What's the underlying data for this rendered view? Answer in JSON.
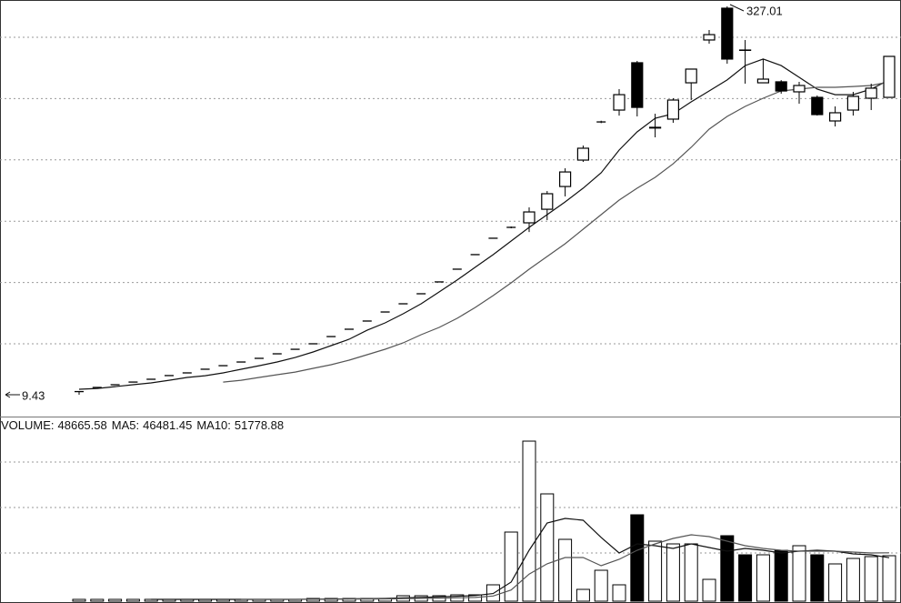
{
  "chart_data": [
    {
      "type": "candlestick",
      "color": "#000000",
      "grid": true,
      "ylim": [
        -8.4,
        332.2
      ],
      "open": [
        12.0,
        15.4,
        17.6,
        19.8,
        22.1,
        25.1,
        27.3,
        30.3,
        33.2,
        36.2,
        39.2,
        42.9,
        46.6,
        51.1,
        57.0,
        63.0,
        69.7,
        77.1,
        83.8,
        92.0,
        101.7,
        112.1,
        124.0,
        137.4,
        146.3,
        150.0,
        161.1,
        179.7,
        201.3,
        232.5,
        242.2,
        280.9,
        227.5,
        234.8,
        264.5,
        299.5,
        325.5,
        291.3,
        264.5,
        265.3,
        257.1,
        252.6,
        233.3,
        242.2,
        251.9,
        252.6
      ],
      "high": [
        12.0,
        15.4,
        17.6,
        19.8,
        22.1,
        25.1,
        27.3,
        30.3,
        33.2,
        36.2,
        39.2,
        42.9,
        46.6,
        51.1,
        57.0,
        63.0,
        69.7,
        77.1,
        83.8,
        92.0,
        101.7,
        112.1,
        124.0,
        137.4,
        147.0,
        162.6,
        176.0,
        194.6,
        213.2,
        233.5,
        259.3,
        282.4,
        239.2,
        251.9,
        275.7,
        307.7,
        327.01,
        299.5,
        283.9,
        266.7,
        265.3,
        254.1,
        245.2,
        257.1,
        263.8,
        286.1
      ],
      "low": [
        9.43,
        15.4,
        17.6,
        19.8,
        22.1,
        25.1,
        27.3,
        30.3,
        33.2,
        36.2,
        39.2,
        42.9,
        46.6,
        51.1,
        57.0,
        63.0,
        69.7,
        77.1,
        83.8,
        92.0,
        101.7,
        112.1,
        124.0,
        137.4,
        145.5,
        142.5,
        152.2,
        171.6,
        199.8,
        231.5,
        237.7,
        237.0,
        219.9,
        231.8,
        250.4,
        296.5,
        280.1,
        263.8,
        264.5,
        255.6,
        247.4,
        237.7,
        228.8,
        237.7,
        242.2,
        252.6
      ],
      "close": [
        12.0,
        15.4,
        17.6,
        19.8,
        22.1,
        25.1,
        27.3,
        30.3,
        33.2,
        36.2,
        39.2,
        42.9,
        46.6,
        51.1,
        57.0,
        63.0,
        69.7,
        77.1,
        83.8,
        92.0,
        101.7,
        112.1,
        124.0,
        137.4,
        146.3,
        158.9,
        173.8,
        191.6,
        211.0,
        232.5,
        254.8,
        244.4,
        228.1,
        250.4,
        275.7,
        303.9,
        283.9,
        291.0,
        267.5,
        257.8,
        262.3,
        238.5,
        240.0,
        253.4,
        260.1,
        286.1
      ],
      "series": [
        {
          "color": "#111111",
          "values": [
            13.9,
            14.6,
            16.1,
            17.6,
            19.1,
            21.3,
            23.6,
            25.0,
            27.3,
            30.3,
            33.2,
            36.2,
            39.9,
            44.4,
            49.6,
            54.8,
            62.2,
            68.2,
            75.6,
            83.8,
            93.5,
            103.2,
            113.6,
            124.0,
            135.1,
            146.3,
            156.7,
            167.1,
            178.3,
            190.9,
            209.5,
            224.4,
            235.5,
            239.2,
            248.9,
            257.8,
            266.8,
            278.6,
            283.9,
            278.6,
            269.0,
            259.3,
            254.8,
            254.8,
            259.3,
            266.8
          ]
        },
        {
          "color": "#555555",
          "values": [
            null,
            null,
            null,
            null,
            null,
            null,
            null,
            null,
            19.8,
            21.3,
            23.6,
            25.8,
            28.0,
            31.0,
            34.0,
            37.7,
            42.2,
            46.6,
            51.8,
            58.5,
            64.5,
            71.9,
            80.8,
            90.5,
            100.9,
            112.1,
            122.5,
            132.9,
            144.8,
            156.7,
            168.6,
            178.3,
            187.2,
            198.3,
            211.7,
            226.6,
            237.0,
            245.2,
            251.9,
            257.8,
            259.3,
            260.8,
            260.8,
            261.5,
            262.3,
            265.3
          ]
        }
      ]
    },
    {
      "type": "bar",
      "grid": true,
      "ylim": [
        0,
        193700
      ],
      "series": [
        {
          "name": "VOLUME:",
          "color": "#000000",
          "values": [
            1946,
            1946,
            1946,
            1946,
            1946,
            1946,
            1946,
            1946,
            1946,
            1946,
            1946,
            1946,
            1946,
            2920,
            2920,
            2920,
            2920,
            2920,
            5840,
            5840,
            5840,
            6813,
            6813,
            17519,
            73971,
            171300,
            114850,
            66184,
            12653,
            33092,
            17519,
            92464,
            64238,
            61318,
            61318,
            23359,
            70078,
            49638,
            49638,
            54505,
            59371,
            49638,
            39905,
            45745,
            47692,
            48665.58
          ]
        },
        {
          "name": "MA5:",
          "color": "#111111",
          "values": [
            null,
            null,
            null,
            null,
            1946,
            1946,
            1946,
            1946,
            1946,
            1946,
            1946,
            1946,
            1946,
            2141,
            2336,
            2531,
            2725,
            2920,
            3504,
            4088,
            4672,
            5256,
            6035,
            8175,
            20440,
            54500,
            83700,
            88570,
            86620,
            68200,
            51590,
            61320,
            59370,
            56450,
            61320,
            57400,
            53530,
            56450,
            54500,
            51590,
            53530,
            54500,
            53530,
            50610,
            49640,
            46481.45
          ]
        },
        {
          "name": "MA10:",
          "color": "#555555",
          "values": [
            null,
            null,
            null,
            null,
            null,
            null,
            null,
            null,
            null,
            1946,
            1946,
            1946,
            1946,
            2043,
            2141,
            2238,
            2336,
            2433,
            2725,
            3017,
            3309,
            3601,
            3990,
            5500,
            12000,
            29000,
            40000,
            46700,
            46700,
            37950,
            44770,
            54500,
            61320,
            67160,
            71050,
            69100,
            64240,
            59370,
            56450,
            54500,
            53530,
            53530,
            53530,
            52560,
            51590,
            51778.88
          ]
        }
      ]
    }
  ]
}
